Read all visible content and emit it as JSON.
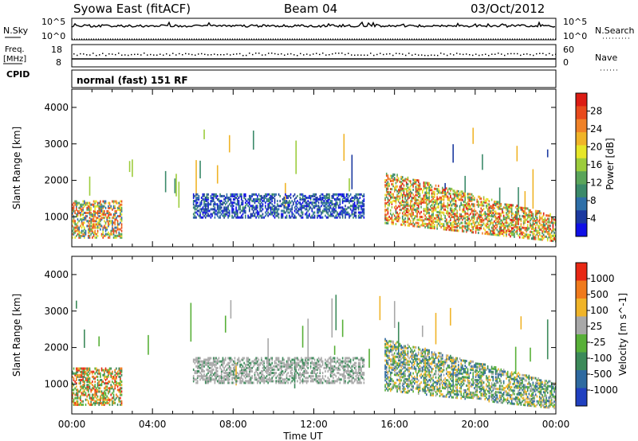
{
  "header": {
    "station": "Syowa East (fitACF)",
    "beam": "Beam 04",
    "date": "03/Oct/2012"
  },
  "noise_panel": {
    "left_label": "N.Sky",
    "left_ticks": [
      "10^5",
      "10^0"
    ],
    "right_label": "N.Search",
    "right_ticks": [
      "10^5",
      "10^0"
    ]
  },
  "freq_panel": {
    "left_label_1": "Freq.",
    "left_label_2": "[MHz]",
    "left_ticks": [
      "18",
      "8"
    ],
    "right_label": "Nave",
    "right_ticks": [
      "60",
      "0"
    ],
    "cpid_label": "CPID"
  },
  "mode_text": "normal (fast) 151 RF",
  "xaxis": {
    "label": "Time UT",
    "ticks": [
      "00:00",
      "04:00",
      "08:00",
      "12:00",
      "16:00",
      "20:00",
      "00:00"
    ]
  },
  "chart_data": [
    {
      "type": "heatmap",
      "ylabel": "Slant Range [km]",
      "yticks": [
        "1000",
        "2000",
        "3000",
        "4000"
      ],
      "ylim": [
        180,
        4500
      ],
      "xlim_hours": [
        0,
        24
      ],
      "colorbar": {
        "label": "Power [dB]",
        "ticks": [
          "4",
          "8",
          "12",
          "16",
          "20",
          "24",
          "28"
        ],
        "colors": [
          "#1010e6",
          "#1c3aa0",
          "#2e6fa8",
          "#3b8a6a",
          "#5aa55a",
          "#9ccc3c",
          "#e6e628",
          "#f0b428",
          "#f08228",
          "#e84a1c",
          "#dc1c14"
        ]
      },
      "regions": [
        {
          "hours": [
            6.0,
            14.5
          ],
          "ranges": [
            950,
            1600
          ],
          "levels": "low"
        },
        {
          "hours": [
            15.5,
            24.0
          ],
          "ranges": [
            300,
            2200
          ],
          "levels": "mixed-high"
        },
        {
          "hours": [
            0.0,
            2.5
          ],
          "ranges": [
            400,
            1400
          ],
          "levels": "mixed"
        }
      ]
    },
    {
      "type": "heatmap",
      "ylabel": "Slant Range [km]",
      "yticks": [
        "1000",
        "2000",
        "3000",
        "4000"
      ],
      "ylim": [
        180,
        4500
      ],
      "xlim_hours": [
        0,
        24
      ],
      "colorbar": {
        "label": "Velocity [m s^-1]",
        "ticks": [
          "1000",
          "500",
          "100",
          "25",
          "-25",
          "-100",
          "-500",
          "-1000"
        ],
        "colors": [
          "#2040c0",
          "#2e6aa0",
          "#3c8a5a",
          "#58b038",
          "#a8a8a8",
          "#f0b428",
          "#f07a1c",
          "#e82814"
        ]
      },
      "regions": [
        {
          "hours": [
            6.0,
            14.5
          ],
          "ranges": [
            1000,
            1700
          ],
          "levels": "ground-scatter"
        },
        {
          "hours": [
            15.5,
            24.0
          ],
          "ranges": [
            300,
            2200
          ],
          "levels": "positive"
        },
        {
          "hours": [
            0.0,
            2.5
          ],
          "ranges": [
            400,
            1400
          ],
          "levels": "mixed"
        }
      ]
    }
  ]
}
